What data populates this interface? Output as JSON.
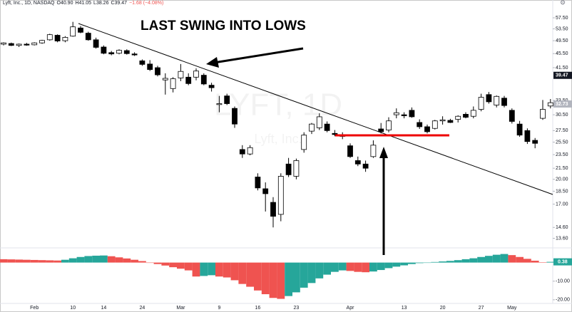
{
  "header": {
    "symbol": "Lyft, Inc., 1D, NASDAQ",
    "open": "O40.90",
    "high": "H41.05",
    "low": "L38.26",
    "close": "C39.47",
    "change": "−1.68 (−4.08%)"
  },
  "watermark": {
    "main": "LYFT, 1D",
    "sub": "Lyft, Inc."
  },
  "annotation": "LAST SWING INTO LOWS",
  "chart_data": [
    {
      "type": "candlestick",
      "log_scale": true,
      "up_color": "#ffffff",
      "down_color": "#000000",
      "categories": [
        null,
        null,
        null,
        null,
        "Feb",
        null,
        null,
        null,
        null,
        "10",
        null,
        null,
        null,
        "14",
        null,
        null,
        null,
        null,
        "24",
        null,
        null,
        null,
        null,
        "Mar",
        null,
        null,
        null,
        null,
        "9",
        null,
        null,
        null,
        null,
        "16",
        null,
        null,
        null,
        null,
        "23",
        null,
        null,
        null,
        null,
        null,
        null,
        "Apr",
        null,
        null,
        null,
        null,
        null,
        null,
        "13",
        null,
        null,
        null,
        null,
        "20",
        null,
        null,
        null,
        null,
        "27",
        null,
        null,
        null,
        "May",
        null,
        null,
        null,
        null,
        null
      ],
      "open": [
        48.4,
        48.6,
        48.0,
        48.4,
        48.2,
        48.8,
        49.8,
        51.3,
        49.5,
        51.0,
        53.8,
        52.0,
        49.8,
        47.5,
        45.8,
        45.6,
        46.4,
        45.4,
        43.4,
        42.5,
        41.5,
        38.3,
        36.2,
        38.8,
        39.0,
        39.0,
        39.5,
        37.0,
        32.6,
        34.5,
        31.8,
        24.3,
        23.6,
        20.3,
        18.8,
        17.2,
        15.9,
        22.1,
        20.4,
        24.3,
        27.4,
        28.0,
        28.7,
        27.0,
        26.6,
        24.9,
        22.6,
        22.1,
        23.2,
        27.8,
        27.6,
        30.5,
        30.5,
        31.4,
        29.0,
        28.2,
        27.9,
        29.3,
        29.4,
        29.6,
        30.6,
        30.2,
        31.6,
        34.8,
        32.5,
        34.0,
        31.4,
        28.7,
        27.5,
        25.8,
        29.8,
        32.3
      ],
      "high": [
        49.0,
        48.9,
        48.6,
        48.8,
        49.0,
        49.8,
        51.8,
        51.6,
        51.0,
        56.0,
        54.5,
        52.5,
        50.5,
        48.0,
        46.3,
        46.8,
        46.8,
        45.9,
        43.8,
        43.6,
        42.0,
        40.0,
        39.0,
        42.5,
        40.0,
        41.3,
        40.0,
        37.6,
        34.5,
        35.0,
        32.2,
        25.0,
        25.0,
        20.8,
        19.6,
        17.8,
        20.8,
        23.0,
        22.9,
        27.2,
        28.9,
        30.8,
        29.2,
        27.6,
        27.2,
        25.3,
        23.2,
        22.6,
        25.8,
        28.9,
        30.0,
        31.8,
        31.0,
        32.0,
        29.6,
        28.6,
        29.5,
        30.2,
        29.7,
        30.4,
        31.0,
        32.2,
        35.0,
        35.4,
        34.6,
        34.5,
        31.8,
        29.3,
        27.9,
        26.2,
        33.6,
        33.8
      ],
      "low": [
        48.0,
        47.8,
        47.5,
        47.9,
        48.0,
        48.5,
        49.5,
        49.0,
        49.0,
        50.8,
        52.0,
        49.5,
        47.0,
        45.3,
        45.0,
        45.3,
        45.2,
        44.8,
        42.0,
        40.6,
        39.2,
        34.8,
        35.3,
        38.0,
        37.0,
        38.2,
        37.0,
        35.5,
        31.0,
        32.5,
        28.0,
        23.0,
        23.4,
        18.6,
        16.2,
        14.6,
        15.2,
        20.3,
        20.0,
        23.8,
        26.9,
        27.6,
        27.2,
        26.5,
        26.0,
        23.0,
        21.8,
        21.0,
        23.0,
        27.0,
        27.2,
        29.8,
        29.8,
        29.9,
        27.8,
        27.0,
        27.7,
        28.6,
        28.9,
        29.0,
        29.8,
        29.8,
        31.2,
        32.8,
        32.0,
        32.0,
        28.8,
        26.4,
        25.2,
        24.5,
        29.5,
        31.8
      ],
      "close": [
        48.8,
        48.0,
        48.4,
        48.1,
        48.8,
        49.6,
        51.5,
        49.4,
        50.6,
        54.2,
        52.3,
        49.8,
        47.4,
        45.6,
        45.4,
        46.5,
        45.5,
        45.1,
        42.4,
        41.0,
        39.6,
        38.7,
        38.6,
        40.5,
        37.4,
        40.6,
        37.3,
        36.4,
        32.8,
        32.8,
        28.7,
        23.6,
        24.6,
        18.9,
        18.2,
        15.7,
        20.4,
        20.6,
        22.6,
        26.7,
        28.7,
        30.1,
        27.5,
        26.8,
        26.5,
        23.2,
        22.1,
        21.5,
        25.0,
        27.3,
        29.3,
        30.9,
        30.3,
        30.1,
        28.2,
        27.3,
        29.3,
        29.5,
        29.0,
        30.2,
        30.0,
        31.4,
        34.2,
        33.2,
        34.4,
        32.4,
        29.2,
        26.7,
        25.6,
        25.3,
        31.6,
        33.0
      ],
      "ylim": [
        12.95,
        64.6
      ],
      "yticks": [
        {
          "value": 57.5,
          "label": "57.50"
        },
        {
          "value": 53.5,
          "label": "53.50"
        },
        {
          "value": 49.5,
          "label": "49.50"
        },
        {
          "value": 45.5,
          "label": "45.50"
        },
        {
          "value": 41.5,
          "label": "41.50"
        },
        {
          "value": 33.5,
          "label": "33.50"
        },
        {
          "value": 30.5,
          "label": "30.50"
        },
        {
          "value": 27.5,
          "label": "27.50"
        },
        {
          "value": 25.5,
          "label": "25.50"
        },
        {
          "value": 23.5,
          "label": "23.50"
        },
        {
          "value": 21.5,
          "label": "21.50"
        },
        {
          "value": 20,
          "label": "20.00"
        },
        {
          "value": 18.5,
          "label": "18.50"
        },
        {
          "value": 17,
          "label": "17.00"
        },
        {
          "value": 14.6,
          "label": "14.60"
        },
        {
          "value": 13.6,
          "label": "13.60"
        }
      ],
      "price_labels": [
        {
          "value": 39.47,
          "label": "39.47",
          "color": "#131722"
        },
        {
          "value": 32.73,
          "label": "32.73",
          "color": "#b2b5be"
        }
      ]
    },
    {
      "type": "bar",
      "rising_color": "#26a69a",
      "falling_color": "#ef5350",
      "values": [
        1.8,
        1.7,
        1.6,
        1.5,
        1.4,
        1.3,
        1.2,
        1.1,
        1.5,
        2.3,
        3.0,
        3.5,
        3.7,
        3.8,
        3.4,
        2.8,
        2.2,
        1.5,
        0.8,
        0,
        -0.8,
        -1.6,
        -2.5,
        -3.3,
        -4.2,
        -7.5,
        -7.2,
        -6.8,
        -7.5,
        -8.0,
        -9.5,
        -11.5,
        -13,
        -15,
        -17,
        -19,
        -19.5,
        -18.0,
        -16,
        -13.5,
        -11,
        -8.5,
        -6.5,
        -5,
        -4.2,
        -4.5,
        -5.0,
        -5.2,
        -4.8,
        -4.0,
        -3.0,
        -2.2,
        -1.5,
        -0.8,
        -0.3,
        0,
        0.3,
        0.6,
        0.9,
        1.3,
        1.8,
        2.3,
        3.0,
        3.6,
        4.2,
        4.6,
        4.0,
        3.0,
        2.0,
        1.0,
        0.2,
        0.38
      ],
      "ylim": [
        -23.5,
        7.5
      ],
      "yticks": [
        {
          "value": -10,
          "label": "-10.00"
        },
        {
          "value": -20,
          "label": "-20.00"
        }
      ]
    }
  ]
}
